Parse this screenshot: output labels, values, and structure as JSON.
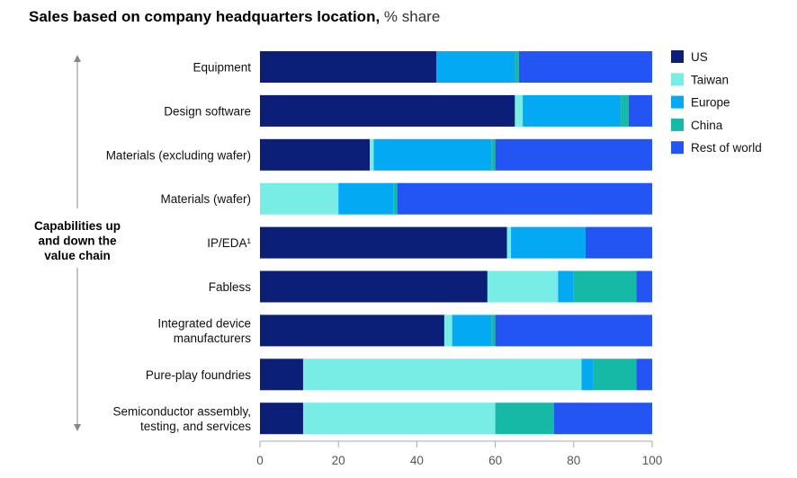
{
  "title": {
    "bold": "Sales based on company headquarters location,",
    "unit": "% share"
  },
  "side_label": [
    "Capabilities up",
    "and down the",
    "value chain"
  ],
  "colors": {
    "US": "#0b1f78",
    "Taiwan": "#77ede6",
    "Europe": "#04a9f3",
    "China": "#16b8a6",
    "Rest of world": "#2355f5",
    "axis": "#aaaaaa",
    "arrow": "#888888"
  },
  "chart_data": {
    "type": "bar",
    "orientation": "horizontal",
    "stacked": true,
    "title": "Sales based on company headquarters location, % share",
    "xlabel": "",
    "ylabel": "Capabilities up and down the value chain",
    "xlim": [
      0,
      100
    ],
    "xticks": [
      0,
      20,
      40,
      60,
      80,
      100
    ],
    "legend_position": "right",
    "categories": [
      [
        "Equipment"
      ],
      [
        "Design software"
      ],
      [
        "Materials (excluding wafer)"
      ],
      [
        "Materials (wafer)"
      ],
      [
        "IP/EDA¹"
      ],
      [
        "Fabless"
      ],
      [
        "Integrated device",
        "manufacturers"
      ],
      [
        "Pure-play foundries"
      ],
      [
        "Semiconductor assembly,",
        "testing, and services"
      ]
    ],
    "series": [
      {
        "name": "US",
        "values": [
          45,
          65,
          28,
          0,
          63,
          58,
          47,
          11,
          11
        ]
      },
      {
        "name": "Taiwan",
        "values": [
          0,
          2,
          1,
          20,
          1,
          18,
          2,
          71,
          49
        ]
      },
      {
        "name": "Europe",
        "values": [
          20,
          25,
          30,
          14,
          19,
          4,
          10,
          3,
          0
        ]
      },
      {
        "name": "China",
        "values": [
          1,
          2,
          1,
          1,
          0,
          16,
          1,
          11,
          15
        ]
      },
      {
        "name": "Rest of world",
        "values": [
          34,
          6,
          40,
          65,
          17,
          4,
          40,
          4,
          25
        ]
      }
    ]
  }
}
